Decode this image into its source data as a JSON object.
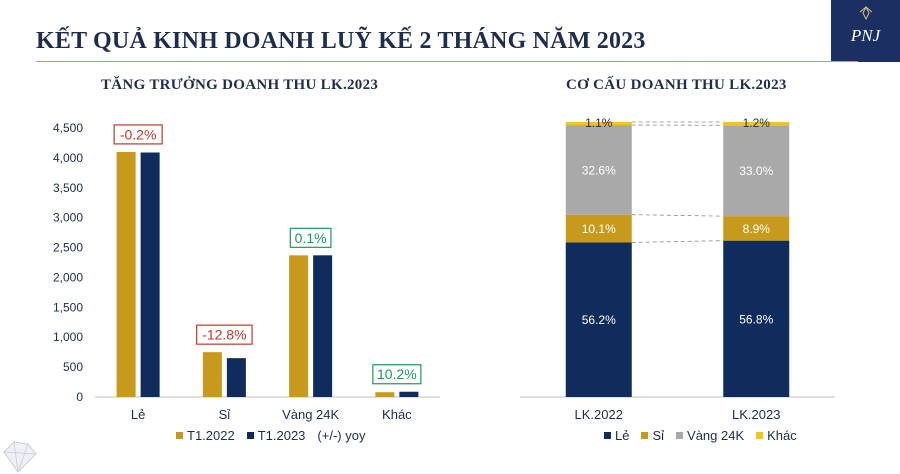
{
  "header": {
    "title": "KẾT QUẢ KINH DOANH LUỸ KẾ 2 THÁNG NĂM 2023",
    "logo_text": "PNJ"
  },
  "colors": {
    "navy": "#0f2c5c",
    "gold": "#c89a1c",
    "gray": "#a9a9a9",
    "yellow": "#f2c31b",
    "red": "#c0392b",
    "green": "#1e9a5a"
  },
  "legend_left": {
    "items": [
      "T1.2022",
      "T1.2023",
      "(+/-) yoy"
    ]
  },
  "legend_right": {
    "items": [
      "Lẻ",
      "Sỉ",
      "Vàng 24K",
      "Khác"
    ]
  },
  "chart_data": [
    {
      "type": "bar",
      "title": "TĂNG TRƯỞNG DOANH THU LK.2023",
      "categories": [
        "Lẻ",
        "Sỉ",
        "Vàng 24K",
        "Khác"
      ],
      "series": [
        {
          "name": "T1.2022",
          "values": [
            4100,
            750,
            2370,
            80
          ]
        },
        {
          "name": "T1.2023",
          "values": [
            4090,
            650,
            2370,
            88
          ]
        }
      ],
      "yoy_labels": [
        "-0.2%",
        "-12.8%",
        "0.1%",
        "10.2%"
      ],
      "yoy_sign": [
        "neg",
        "neg",
        "pos",
        "pos"
      ],
      "ylim": [
        0,
        4500
      ],
      "yticks": [
        0,
        500,
        1000,
        1500,
        2000,
        2500,
        3000,
        3500,
        4000,
        4500
      ],
      "ytick_labels": [
        "0",
        "500",
        "1,000",
        "1,500",
        "2,000",
        "2,500",
        "3,000",
        "3,500",
        "4,000",
        "4,500"
      ],
      "legend": "bottom"
    },
    {
      "type": "bar",
      "stacked": true,
      "percent": true,
      "title": "CƠ CẤU DOANH THU LK.2023",
      "categories": [
        "LK.2022",
        "LK.2023"
      ],
      "series": [
        {
          "name": "Lẻ",
          "values": [
            56.2,
            56.8
          ],
          "labels": [
            "56.2%",
            "56.8%"
          ]
        },
        {
          "name": "Sỉ",
          "values": [
            10.1,
            8.9
          ],
          "labels": [
            "10.1%",
            "8.9%"
          ]
        },
        {
          "name": "Vàng 24K",
          "values": [
            32.6,
            33.0
          ],
          "labels": [
            "32.6%",
            "33.0%"
          ]
        },
        {
          "name": "Khác",
          "values": [
            1.1,
            1.2
          ],
          "labels": [
            "1.1%",
            "1.2%"
          ]
        }
      ],
      "legend": "bottom"
    }
  ]
}
